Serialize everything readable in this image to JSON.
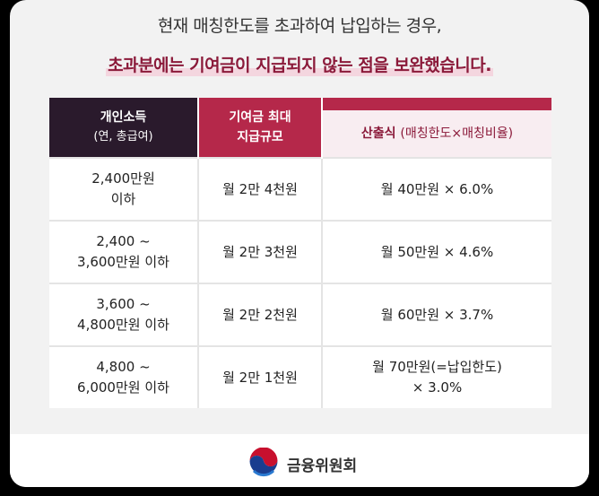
{
  "headline": {
    "line1": "현재 매칭한도를 초과하여 납입하는 경우,",
    "line2": "초과분에는 기여금이 지급되지 않는 점을 보완했습니다."
  },
  "table": {
    "headers": {
      "income_title": "개인소득",
      "income_sub": "(연, 총급여)",
      "max_line1": "기여금 최대",
      "max_line2": "지급규모",
      "formula_title": "산출식",
      "formula_sub": "(매칭한도×매칭비율)"
    },
    "rows": [
      {
        "income_l1": "2,400만원",
        "income_l2": "이하",
        "max": "월 2만 4천원",
        "formula_l1": "월 40만원 × 6.0%",
        "formula_l2": ""
      },
      {
        "income_l1": "2,400 ~",
        "income_l2": "3,600만원 이하",
        "max": "월 2만 3천원",
        "formula_l1": "월 50만원 × 4.6%",
        "formula_l2": ""
      },
      {
        "income_l1": "3,600 ~",
        "income_l2": "4,800만원 이하",
        "max": "월 2만 2천원",
        "formula_l1": "월 60만원 × 3.7%",
        "formula_l2": ""
      },
      {
        "income_l1": "4,800 ~",
        "income_l2": "6,000만원 이하",
        "max": "월 2만 1천원",
        "formula_l1": "월 70만원(=납입한도)",
        "formula_l2": "× 3.0%"
      }
    ]
  },
  "footer": {
    "org_name": "금융위원회",
    "logo_icon": "taegeuk-emblem-icon"
  },
  "colors": {
    "accent": "#b5284a",
    "dark_header": "#2a1a2c",
    "highlight": "#f4d6df",
    "text_accent": "#8b1a3a"
  }
}
